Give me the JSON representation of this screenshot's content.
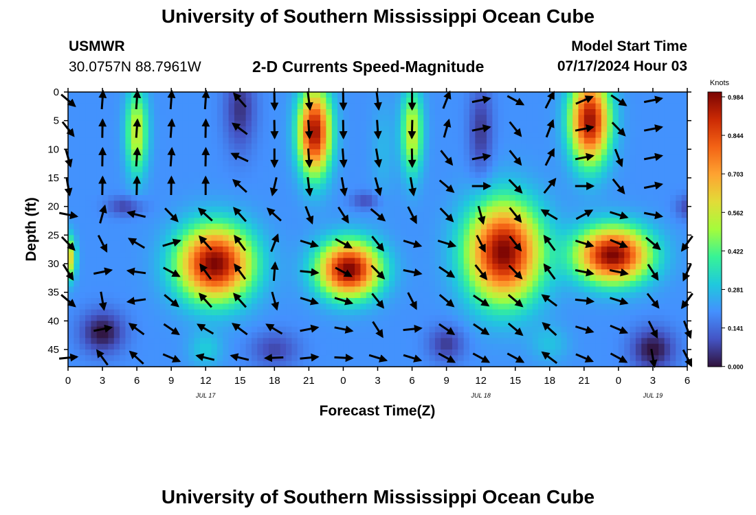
{
  "header": {
    "title": "University of Southern Mississippi Ocean Cube",
    "station": "USMWR",
    "coords": "30.0757N  88.7961W",
    "chart_title": "2-D Currents Speed-Magnitude",
    "model_label": "Model Start Time",
    "model_time": "07/17/2024 Hour 03"
  },
  "footer": {
    "title": "University of Southern Mississippi Ocean Cube"
  },
  "chart_data": {
    "type": "heatmap",
    "title": "2-D Currents Speed-Magnitude",
    "xlabel": "Forecast Time(Z)",
    "ylabel": "Depth (ft)",
    "x_range_hours": [
      0,
      54
    ],
    "y_range_ft": [
      0,
      48
    ],
    "x_ticks": [
      "0",
      "3",
      "6",
      "9",
      "12",
      "15",
      "18",
      "21",
      "0",
      "3",
      "6",
      "9",
      "12",
      "15",
      "18",
      "21",
      "0",
      "3",
      "6"
    ],
    "y_ticks": [
      "0",
      "5",
      "10",
      "15",
      "20",
      "25",
      "30",
      "35",
      "40",
      "45"
    ],
    "date_labels": [
      {
        "label": "JUL 17",
        "at_hour": 12
      },
      {
        "label": "JUL 18",
        "at_hour": 36
      },
      {
        "label": "JUL 19",
        "at_hour": 51
      }
    ],
    "colorbar": {
      "label": "Knots",
      "min": 0,
      "max": 0.984,
      "ticks": [
        "0.984",
        "0.844",
        "0.703",
        "0.562",
        "0.422",
        "0.281",
        "0.141",
        "0.000"
      ],
      "colormap": [
        "#30123b",
        "#4454c4",
        "#4490fe",
        "#1fc9dd",
        "#37f396",
        "#a4fc3c",
        "#e2dc38",
        "#fea331",
        "#f36315",
        "#cb2a04",
        "#7a0403"
      ]
    },
    "speed_features": [
      {
        "t": 3,
        "d": 42,
        "v": 0.0,
        "sx": 1.8,
        "sy": 3.5
      },
      {
        "t": 51,
        "d": 45,
        "v": 0.0,
        "sx": 1.8,
        "sy": 3.5
      },
      {
        "t": 15,
        "d": 3,
        "v": 0.05,
        "sx": 1.3,
        "sy": 7.0
      },
      {
        "t": 36,
        "d": 7,
        "v": 0.06,
        "sx": 1.0,
        "sy": 8.0
      },
      {
        "t": 33,
        "d": 44,
        "v": 0.06,
        "sx": 1.5,
        "sy": 3.0
      },
      {
        "t": 5,
        "d": 20,
        "v": 0.07,
        "sx": 1.5,
        "sy": 1.6
      },
      {
        "t": 26,
        "d": 19,
        "v": 0.08,
        "sx": 1.2,
        "sy": 1.4
      },
      {
        "t": 54,
        "d": 20,
        "v": 0.06,
        "sx": 1.0,
        "sy": 2.0
      },
      {
        "t": 18,
        "d": 45,
        "v": 0.08,
        "sx": 2.0,
        "sy": 3.0
      },
      {
        "t": 1,
        "d": 10,
        "v": 0.2,
        "sx": 1.2,
        "sy": 7.0
      },
      {
        "t": 9,
        "d": 10,
        "v": 0.2,
        "sx": 1.2,
        "sy": 8.0
      },
      {
        "t": 53,
        "d": 10,
        "v": 0.2,
        "sx": 1.2,
        "sy": 8.0
      },
      {
        "t": 27.5,
        "d": 10,
        "v": 0.26,
        "sx": 1.0,
        "sy": 8.0
      },
      {
        "t": 12,
        "d": 45,
        "v": 0.3,
        "sx": 1.4,
        "sy": 3.0
      },
      {
        "t": 42,
        "d": 44,
        "v": 0.28,
        "sx": 1.6,
        "sy": 3.0
      },
      {
        "t": 6,
        "d": 7,
        "v": 0.55,
        "sx": 0.9,
        "sy": 7.0
      },
      {
        "t": 30,
        "d": 7,
        "v": 0.55,
        "sx": 0.9,
        "sy": 7.0
      },
      {
        "t": 21.5,
        "d": 7,
        "v": 0.95,
        "sx": 1.3,
        "sy": 7.0
      },
      {
        "t": 45.5,
        "d": 5,
        "v": 0.95,
        "sx": 1.6,
        "sy": 7.0
      },
      {
        "t": 12.8,
        "d": 30,
        "v": 0.984,
        "sx": 3.0,
        "sy": 6.0
      },
      {
        "t": 24.5,
        "d": 31,
        "v": 0.984,
        "sx": 2.5,
        "sy": 4.5
      },
      {
        "t": 38,
        "d": 28,
        "v": 0.984,
        "sx": 3.0,
        "sy": 8.0
      },
      {
        "t": 47.5,
        "d": 28.5,
        "v": 0.984,
        "sx": 3.0,
        "sy": 4.5
      },
      {
        "t": 0,
        "d": 29,
        "v": 0.65,
        "sx": 0.6,
        "sy": 3.5
      }
    ],
    "vectors": [
      {
        "t": 0,
        "d": 0,
        "dir": 0.7
      },
      {
        "t": 0,
        "d": 5,
        "dir": 0.9
      },
      {
        "t": 0,
        "d": 10,
        "dir": 1.3
      },
      {
        "t": 0,
        "d": 15,
        "dir": 1.4
      },
      {
        "t": 0,
        "d": 20,
        "dir": 0.2
      },
      {
        "t": 0,
        "d": 25,
        "dir": 0.8
      },
      {
        "t": 0,
        "d": 30,
        "dir": 1.0
      },
      {
        "t": 0,
        "d": 35,
        "dir": 0.7
      },
      {
        "t": 0,
        "d": 45,
        "dir": -0.1
      },
      {
        "t": 3,
        "d": 0,
        "dir": -1.5
      },
      {
        "t": 3,
        "d": 5,
        "dir": -1.55
      },
      {
        "t": 3,
        "d": 10,
        "dir": -1.55
      },
      {
        "t": 3,
        "d": 15,
        "dir": -1.55
      },
      {
        "t": 3,
        "d": 20,
        "dir": -1.3
      },
      {
        "t": 3,
        "d": 25,
        "dir": 1.1
      },
      {
        "t": 3,
        "d": 30,
        "dir": -0.2
      },
      {
        "t": 3,
        "d": 35,
        "dir": 1.4
      },
      {
        "t": 3,
        "d": 40,
        "dir": -0.2
      },
      {
        "t": 3,
        "d": 45,
        "dir": -2.2
      },
      {
        "t": 6,
        "d": 0,
        "dir": -1.5
      },
      {
        "t": 6,
        "d": 5,
        "dir": -1.5
      },
      {
        "t": 6,
        "d": 10,
        "dir": -1.5
      },
      {
        "t": 6,
        "d": 15,
        "dir": -1.55
      },
      {
        "t": 6,
        "d": 20,
        "dir": -2.9
      },
      {
        "t": 6,
        "d": 25,
        "dir": -2.6
      },
      {
        "t": 6,
        "d": 30,
        "dir": -3.0
      },
      {
        "t": 6,
        "d": 35,
        "dir": 3.0
      },
      {
        "t": 6,
        "d": 40,
        "dir": -2.5
      },
      {
        "t": 6,
        "d": 45,
        "dir": -2.4
      },
      {
        "t": 9,
        "d": 0,
        "dir": -1.5
      },
      {
        "t": 9,
        "d": 5,
        "dir": -1.5
      },
      {
        "t": 9,
        "d": 10,
        "dir": -1.5
      },
      {
        "t": 9,
        "d": 15,
        "dir": -1.55
      },
      {
        "t": 9,
        "d": 20,
        "dir": 0.8
      },
      {
        "t": 9,
        "d": 25,
        "dir": -0.3
      },
      {
        "t": 9,
        "d": 30,
        "dir": 0.5
      },
      {
        "t": 9,
        "d": 35,
        "dir": 0.7
      },
      {
        "t": 9,
        "d": 40,
        "dir": 0.6
      },
      {
        "t": 9,
        "d": 45,
        "dir": 0.4
      },
      {
        "t": 12,
        "d": 0,
        "dir": -1.5
      },
      {
        "t": 12,
        "d": 5,
        "dir": -1.55
      },
      {
        "t": 12,
        "d": 10,
        "dir": -1.55
      },
      {
        "t": 12,
        "d": 15,
        "dir": -1.57
      },
      {
        "t": 12,
        "d": 20,
        "dir": -2.4
      },
      {
        "t": 12,
        "d": 25,
        "dir": -2.3
      },
      {
        "t": 12,
        "d": 30,
        "dir": -2.2
      },
      {
        "t": 12,
        "d": 35,
        "dir": -2.3
      },
      {
        "t": 12,
        "d": 40,
        "dir": -2.6
      },
      {
        "t": 12,
        "d": 45,
        "dir": -2.9
      },
      {
        "t": 15,
        "d": 0,
        "dir": -2.3
      },
      {
        "t": 15,
        "d": 5,
        "dir": -2.5
      },
      {
        "t": 15,
        "d": 10,
        "dir": -2.7
      },
      {
        "t": 15,
        "d": 15,
        "dir": -2.4
      },
      {
        "t": 15,
        "d": 20,
        "dir": -2.3
      },
      {
        "t": 15,
        "d": 25,
        "dir": -2.2
      },
      {
        "t": 15,
        "d": 30,
        "dir": -2.2
      },
      {
        "t": 15,
        "d": 35,
        "dir": -2.3
      },
      {
        "t": 15,
        "d": 40,
        "dir": -2.5
      },
      {
        "t": 15,
        "d": 45,
        "dir": -2.9
      },
      {
        "t": 18,
        "d": 0,
        "dir": 1.55
      },
      {
        "t": 18,
        "d": 5,
        "dir": 1.55
      },
      {
        "t": 18,
        "d": 10,
        "dir": 1.57
      },
      {
        "t": 18,
        "d": 15,
        "dir": 1.8
      },
      {
        "t": 18,
        "d": 20,
        "dir": -2.4
      },
      {
        "t": 18,
        "d": 25,
        "dir": -1.2
      },
      {
        "t": 18,
        "d": 30,
        "dir": -1.5
      },
      {
        "t": 18,
        "d": 35,
        "dir": 1.3
      },
      {
        "t": 18,
        "d": 40,
        "dir": -2.6
      },
      {
        "t": 18,
        "d": 45,
        "dir": 3.1
      },
      {
        "t": 21,
        "d": 0,
        "dir": 1.45
      },
      {
        "t": 21,
        "d": 5,
        "dir": 1.5
      },
      {
        "t": 21,
        "d": 10,
        "dir": 1.5
      },
      {
        "t": 21,
        "d": 15,
        "dir": 1.45
      },
      {
        "t": 21,
        "d": 20,
        "dir": 1.2
      },
      {
        "t": 21,
        "d": 25,
        "dir": 0.3
      },
      {
        "t": 21,
        "d": 30,
        "dir": 0.1
      },
      {
        "t": 21,
        "d": 35,
        "dir": 0.3
      },
      {
        "t": 21,
        "d": 40,
        "dir": -0.2
      },
      {
        "t": 21,
        "d": 45,
        "dir": -0.1
      },
      {
        "t": 24,
        "d": 0,
        "dir": 1.55
      },
      {
        "t": 24,
        "d": 5,
        "dir": 1.55
      },
      {
        "t": 24,
        "d": 10,
        "dir": 1.5
      },
      {
        "t": 24,
        "d": 15,
        "dir": 1.4
      },
      {
        "t": 24,
        "d": 20,
        "dir": 1.0
      },
      {
        "t": 24,
        "d": 25,
        "dir": 0.5
      },
      {
        "t": 24,
        "d": 30,
        "dir": 0.5
      },
      {
        "t": 24,
        "d": 35,
        "dir": 0.3
      },
      {
        "t": 24,
        "d": 40,
        "dir": 0.2
      },
      {
        "t": 24,
        "d": 45,
        "dir": 0.05
      },
      {
        "t": 27,
        "d": 0,
        "dir": 1.45
      },
      {
        "t": 27,
        "d": 5,
        "dir": 1.5
      },
      {
        "t": 27,
        "d": 10,
        "dir": 1.4
      },
      {
        "t": 27,
        "d": 15,
        "dir": 1.3
      },
      {
        "t": 27,
        "d": 20,
        "dir": 0.7
      },
      {
        "t": 27,
        "d": 25,
        "dir": 0.9
      },
      {
        "t": 27,
        "d": 30,
        "dir": 0.8
      },
      {
        "t": 27,
        "d": 35,
        "dir": 0.9
      },
      {
        "t": 27,
        "d": 40,
        "dir": 1.0
      },
      {
        "t": 27,
        "d": 45,
        "dir": 0.3
      },
      {
        "t": 30,
        "d": 0,
        "dir": 1.57
      },
      {
        "t": 30,
        "d": 5,
        "dir": 1.6
      },
      {
        "t": 30,
        "d": 10,
        "dir": 1.55
      },
      {
        "t": 30,
        "d": 15,
        "dir": 1.4
      },
      {
        "t": 30,
        "d": 20,
        "dir": 1.1
      },
      {
        "t": 30,
        "d": 25,
        "dir": 0.3
      },
      {
        "t": 30,
        "d": 30,
        "dir": 0.2
      },
      {
        "t": 30,
        "d": 35,
        "dir": 1.1
      },
      {
        "t": 30,
        "d": 40,
        "dir": -0.1
      },
      {
        "t": 30,
        "d": 45,
        "dir": 0.3
      },
      {
        "t": 33,
        "d": 0,
        "dir": -1.2
      },
      {
        "t": 33,
        "d": 5,
        "dir": -1.3
      },
      {
        "t": 33,
        "d": 10,
        "dir": 0.9
      },
      {
        "t": 33,
        "d": 15,
        "dir": 0.7
      },
      {
        "t": 33,
        "d": 20,
        "dir": 0.8
      },
      {
        "t": 33,
        "d": 25,
        "dir": 0.3
      },
      {
        "t": 33,
        "d": 30,
        "dir": 0.6
      },
      {
        "t": 33,
        "d": 35,
        "dir": 0.7
      },
      {
        "t": 33,
        "d": 40,
        "dir": 0.6
      },
      {
        "t": 33,
        "d": 45,
        "dir": 0.5
      },
      {
        "t": 36,
        "d": 0,
        "dir": -0.2
      },
      {
        "t": 36,
        "d": 5,
        "dir": -0.2
      },
      {
        "t": 36,
        "d": 10,
        "dir": -0.2
      },
      {
        "t": 36,
        "d": 15,
        "dir": 0.0
      },
      {
        "t": 36,
        "d": 20,
        "dir": 1.3
      },
      {
        "t": 36,
        "d": 25,
        "dir": 1.1
      },
      {
        "t": 36,
        "d": 30,
        "dir": 0.9
      },
      {
        "t": 36,
        "d": 35,
        "dir": 0.6
      },
      {
        "t": 36,
        "d": 40,
        "dir": 0.6
      },
      {
        "t": 36,
        "d": 45,
        "dir": 0.5
      },
      {
        "t": 39,
        "d": 0,
        "dir": 0.5
      },
      {
        "t": 39,
        "d": 5,
        "dir": 0.9
      },
      {
        "t": 39,
        "d": 10,
        "dir": 0.9
      },
      {
        "t": 39,
        "d": 15,
        "dir": 0.8
      },
      {
        "t": 39,
        "d": 20,
        "dir": 0.9
      },
      {
        "t": 39,
        "d": 25,
        "dir": 0.9
      },
      {
        "t": 39,
        "d": 30,
        "dir": 0.8
      },
      {
        "t": 39,
        "d": 35,
        "dir": 0.7
      },
      {
        "t": 39,
        "d": 40,
        "dir": 0.7
      },
      {
        "t": 39,
        "d": 45,
        "dir": 0.5
      },
      {
        "t": 42,
        "d": 0,
        "dir": -1.1
      },
      {
        "t": 42,
        "d": 5,
        "dir": -1.2
      },
      {
        "t": 42,
        "d": 10,
        "dir": -1.1
      },
      {
        "t": 42,
        "d": 15,
        "dir": -0.9
      },
      {
        "t": 42,
        "d": 20,
        "dir": -2.6
      },
      {
        "t": 42,
        "d": 25,
        "dir": -2.2
      },
      {
        "t": 42,
        "d": 30,
        "dir": -2.2
      },
      {
        "t": 42,
        "d": 35,
        "dir": -2.5
      },
      {
        "t": 42,
        "d": 40,
        "dir": -2.4
      },
      {
        "t": 42,
        "d": 45,
        "dir": -2.5
      },
      {
        "t": 45,
        "d": 0,
        "dir": -0.4
      },
      {
        "t": 45,
        "d": 5,
        "dir": -0.2
      },
      {
        "t": 45,
        "d": 10,
        "dir": -0.2
      },
      {
        "t": 45,
        "d": 15,
        "dir": 0.0
      },
      {
        "t": 45,
        "d": 20,
        "dir": -0.5
      },
      {
        "t": 45,
        "d": 25,
        "dir": 0.3
      },
      {
        "t": 45,
        "d": 30,
        "dir": 0.2
      },
      {
        "t": 45,
        "d": 35,
        "dir": 0.1
      },
      {
        "t": 45,
        "d": 40,
        "dir": 0.3
      },
      {
        "t": 45,
        "d": 45,
        "dir": 0.4
      },
      {
        "t": 48,
        "d": 0,
        "dir": 0.6
      },
      {
        "t": 48,
        "d": 5,
        "dir": 0.8
      },
      {
        "t": 48,
        "d": 10,
        "dir": 1.2
      },
      {
        "t": 48,
        "d": 15,
        "dir": 0.9
      },
      {
        "t": 48,
        "d": 20,
        "dir": 0.3
      },
      {
        "t": 48,
        "d": 25,
        "dir": 0.4
      },
      {
        "t": 48,
        "d": 30,
        "dir": 0.2
      },
      {
        "t": 48,
        "d": 35,
        "dir": 0.3
      },
      {
        "t": 48,
        "d": 40,
        "dir": 0.4
      },
      {
        "t": 48,
        "d": 45,
        "dir": 0.5
      },
      {
        "t": 51,
        "d": 0,
        "dir": -0.2
      },
      {
        "t": 51,
        "d": 5,
        "dir": -0.2
      },
      {
        "t": 51,
        "d": 10,
        "dir": -0.2
      },
      {
        "t": 51,
        "d": 15,
        "dir": -0.2
      },
      {
        "t": 51,
        "d": 20,
        "dir": 0.2
      },
      {
        "t": 51,
        "d": 25,
        "dir": 0.7
      },
      {
        "t": 51,
        "d": 30,
        "dir": 1.0
      },
      {
        "t": 51,
        "d": 35,
        "dir": 0.9
      },
      {
        "t": 51,
        "d": 40,
        "dir": 1.1
      },
      {
        "t": 51,
        "d": 45,
        "dir": 1.4
      },
      {
        "t": 54,
        "d": 25,
        "dir": 2.2
      },
      {
        "t": 54,
        "d": 30,
        "dir": 2.0
      },
      {
        "t": 54,
        "d": 35,
        "dir": 2.2
      },
      {
        "t": 54,
        "d": 40,
        "dir": 1.2
      },
      {
        "t": 54,
        "d": 45,
        "dir": 1.1
      }
    ]
  }
}
